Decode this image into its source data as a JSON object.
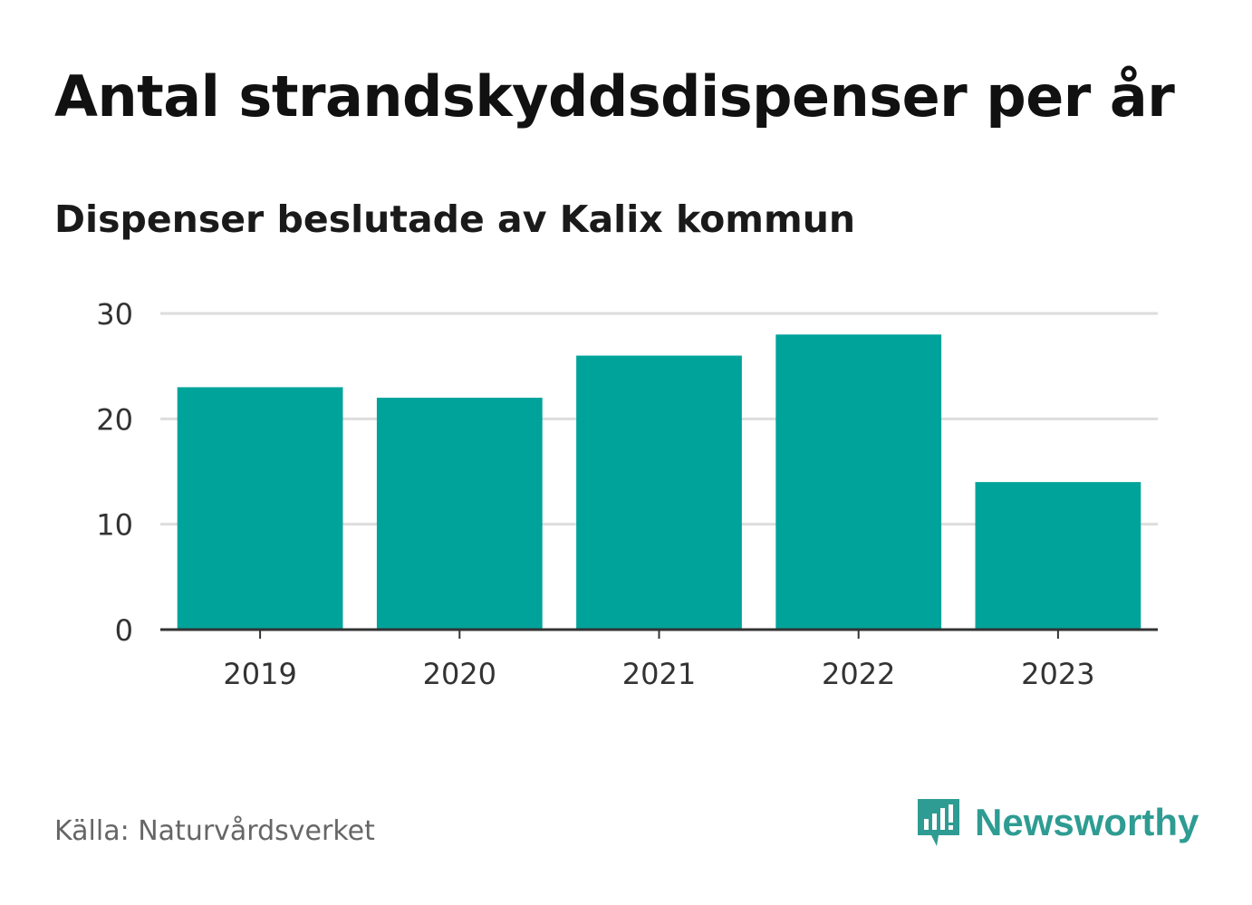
{
  "chart_data": {
    "type": "bar",
    "title": "Antal strandskyddsdispenser per år",
    "subtitle": "Dispenser beslutade av Kalix kommun",
    "categories": [
      "2019",
      "2020",
      "2021",
      "2022",
      "2023"
    ],
    "values": [
      23,
      22,
      26,
      28,
      14
    ],
    "xlabel": "",
    "ylabel": "",
    "ylim": [
      0,
      30
    ],
    "yticks": [
      "0",
      "10",
      "20",
      "30"
    ],
    "grid": true,
    "bar_color": "#00a39a",
    "grid_color": "#dddddd",
    "axis_color": "#333333"
  },
  "footer": {
    "source": "Källa: Naturvårdsverket",
    "brand": "Newsworthy",
    "brand_color": "#2e9c92",
    "brand_icon": "newsworthy-logo-icon"
  }
}
